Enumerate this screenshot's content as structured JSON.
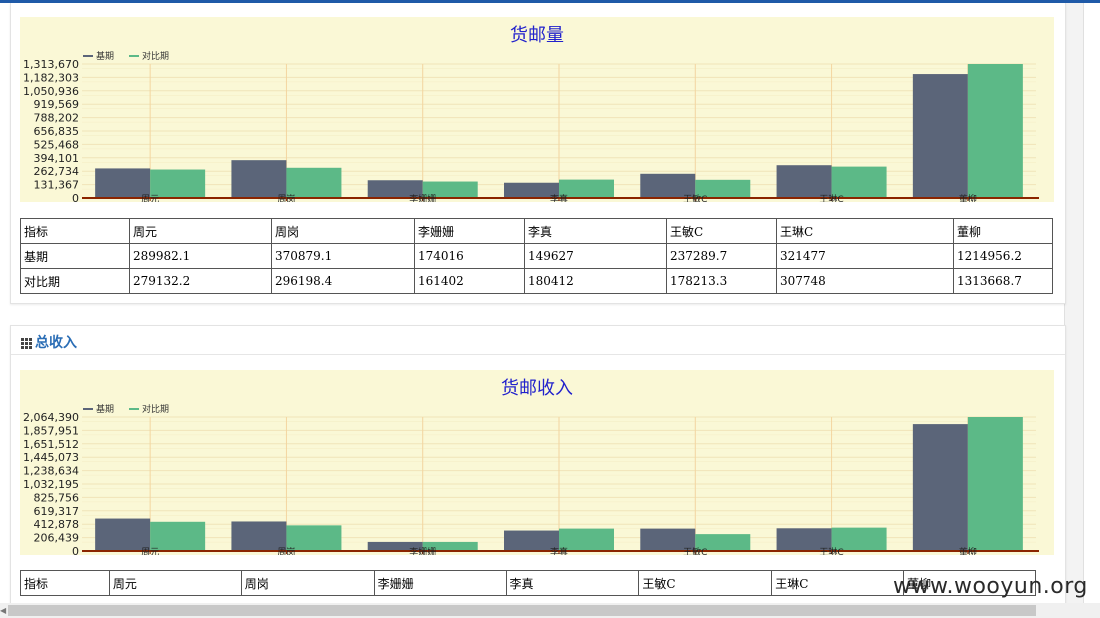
{
  "section2": {
    "title": "总收入"
  },
  "legend": {
    "base": "基期",
    "compare": "对比期"
  },
  "colors": {
    "base": "#5b6579",
    "compare": "#5cb987",
    "chart_bg": "#faf8d6",
    "title": "#2222cc",
    "axis": "#8b2500",
    "grid": "#f0e4b8"
  },
  "chart_data": [
    {
      "type": "bar",
      "title": "货邮量",
      "categories": [
        "周元",
        "周岗",
        "李姗姗",
        "李真",
        "王敏C",
        "王琳C",
        "董柳"
      ],
      "series": [
        {
          "name": "基期",
          "values": [
            289982.1,
            370879.1,
            174016,
            149627,
            237289.7,
            321477,
            1214956.2
          ]
        },
        {
          "name": "对比期",
          "values": [
            279132.2,
            296198.4,
            161402,
            180412,
            178213.3,
            307748,
            1313668.7
          ]
        }
      ],
      "yticks": [
        "0",
        "131,367",
        "262,734",
        "394,101",
        "525,468",
        "656,835",
        "788,202",
        "919,569",
        "1,050,936",
        "1,182,303",
        "1,313,670"
      ],
      "ylim": [
        0,
        1313670
      ],
      "grid": true,
      "legend_position": "top-left"
    },
    {
      "type": "bar",
      "title": "货邮收入",
      "categories": [
        "周元",
        "周岗",
        "李姗姗",
        "李真",
        "王敏C",
        "王琳C",
        "董柳"
      ],
      "series": [
        {
          "name": "基期",
          "values": [
            500000,
            455000,
            140000,
            315000,
            345000,
            350000,
            1955000
          ]
        },
        {
          "name": "对比期",
          "values": [
            450000,
            395000,
            140000,
            345000,
            260000,
            360000,
            2064390
          ]
        }
      ],
      "yticks": [
        "0",
        "206,439",
        "412,878",
        "619,317",
        "825,756",
        "1,032,195",
        "1,238,634",
        "1,445,073",
        "1,651,512",
        "1,857,951",
        "2,064,390"
      ],
      "ylim": [
        0,
        2064390
      ],
      "grid": true,
      "legend_position": "top-left"
    }
  ],
  "table1": {
    "header": [
      "指标",
      "周元",
      "周岗",
      "李姗姗",
      "李真",
      "王敏C",
      "王琳C",
      "董柳"
    ],
    "rows": [
      [
        "基期",
        "289982.1",
        "370879.1",
        "174016",
        "149627",
        "237289.7",
        "321477",
        "1214956.2"
      ],
      [
        "对比期",
        "279132.2",
        "296198.4",
        "161402",
        "180412",
        "178213.3",
        "307748",
        "1313668.7"
      ]
    ]
  },
  "table2": {
    "header": [
      "指标",
      "周元",
      "周岗",
      "李姗姗",
      "李真",
      "王敏C",
      "王琳C",
      "董柳"
    ]
  },
  "watermark": "www.wooyun.org"
}
